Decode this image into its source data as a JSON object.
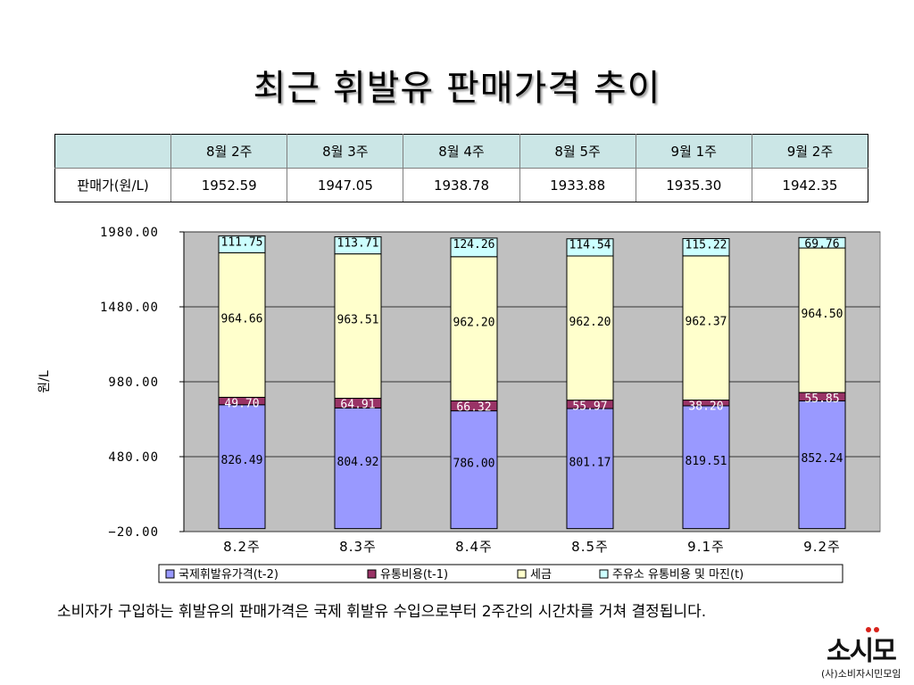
{
  "title": "최근 휘발유 판매가격 추이",
  "table": {
    "header": [
      "",
      "8월 2주",
      "8월 3주",
      "8월 4주",
      "8월 5주",
      "9월 1주",
      "9월 2주"
    ],
    "row_label": "판매가(원/L)",
    "row_values": [
      "1952.59",
      "1947.05",
      "1938.78",
      "1933.88",
      "1935.30",
      "1942.35"
    ]
  },
  "chart_data": {
    "type": "bar",
    "stacked": true,
    "ylabel": "원/L",
    "ylim": [
      -20,
      1980
    ],
    "yticks": [
      "1980.00",
      "1480.00",
      "980.00",
      "480.00",
      "-20.00"
    ],
    "categories": [
      "8.2주",
      "8.3주",
      "8.4주",
      "8.5주",
      "9.1주",
      "9.2주"
    ],
    "grid": true,
    "legend_position": "bottom",
    "series": [
      {
        "name": "국제휘발유가격(t-2)",
        "color": "#9999ff",
        "values": [
          826.49,
          804.92,
          786.0,
          801.17,
          819.51,
          852.24
        ],
        "labels": [
          "826.49",
          "804.92",
          "786.00",
          "801.17",
          "819.51",
          "852.24"
        ]
      },
      {
        "name": "유통비용(t-1)",
        "color": "#993366",
        "values": [
          49.7,
          64.91,
          66.32,
          55.97,
          38.2,
          55.85
        ],
        "labels": [
          "49.70",
          "64.91",
          "66.32",
          "55.97",
          "38.20",
          "55.85"
        ]
      },
      {
        "name": "세금",
        "color": "#ffffcc",
        "values": [
          964.66,
          963.51,
          962.2,
          962.2,
          962.37,
          964.5
        ],
        "labels": [
          "964.66",
          "963.51",
          "962.20",
          "962.20",
          "962.37",
          "964.50"
        ]
      },
      {
        "name": "주유소 유통비용 및 마진(t)",
        "color": "#ccffff",
        "values": [
          111.75,
          113.71,
          124.26,
          114.54,
          115.22,
          69.76
        ],
        "labels": [
          "111.75",
          "113.71",
          "124.26",
          "114.54",
          "115.22",
          "69.76"
        ]
      }
    ]
  },
  "footer": "소비자가 구입하는 휘발유의 판매가격은 국제 휘발유 수입으로부터 2주간의 시간차를 거쳐 결정됩니다.",
  "logo": {
    "mark": "소시모",
    "subtitle": "(사)소비자시민모임"
  }
}
